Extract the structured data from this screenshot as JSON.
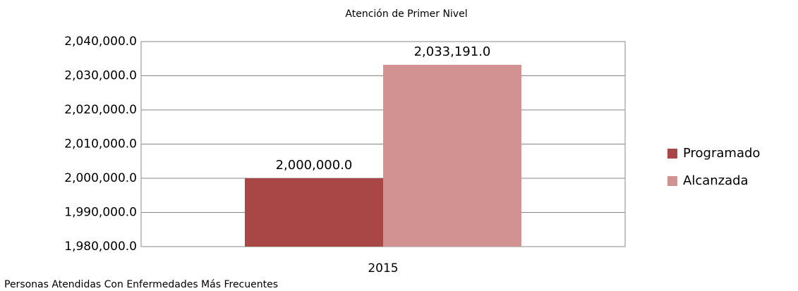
{
  "chart_data": {
    "type": "bar",
    "title": "Atención de Primer Nivel",
    "x_label": "Personas Atendidas Con Enfermedades Más Frecuentes",
    "categories": [
      "2015"
    ],
    "series": [
      {
        "name": "Programado",
        "color": "#a94646",
        "values": [
          2000000
        ],
        "value_labels": [
          "2,000,000.0"
        ]
      },
      {
        "name": "Alcanzada",
        "color": "#d39292",
        "values": [
          2033191
        ],
        "value_labels": [
          "2,033,191.0"
        ]
      }
    ],
    "ylim": [
      1980000,
      2040000
    ],
    "yticks": [
      {
        "value": 1980000,
        "label": "1,980,000.0"
      },
      {
        "value": 1990000,
        "label": "1,990,000.0"
      },
      {
        "value": 2000000,
        "label": "2,000,000.0"
      },
      {
        "value": 2010000,
        "label": "2,010,000.0"
      },
      {
        "value": 2020000,
        "label": "2,020,000.0"
      },
      {
        "value": 2030000,
        "label": "2,030,000.0"
      },
      {
        "value": 2040000,
        "label": "2,040,000.0"
      }
    ],
    "grid": true,
    "legend": "right"
  }
}
